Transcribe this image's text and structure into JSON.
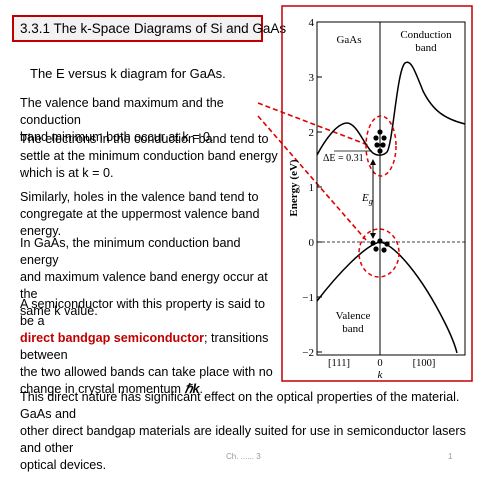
{
  "slide": {
    "title": "3.3.1  The k-Space Diagrams of Si and GaAs",
    "subtitle": "The E versus k diagram for GaAs.",
    "para1": [
      "The valence band maximum and the conduction",
      "band minimum both occur at k = 0."
    ],
    "para2": [
      "The electrons in the conduction band tend to",
      "settle at the minimum conduction band energy",
      "which is at k = 0."
    ],
    "para3": [
      "Similarly,  holes  in  the  valence  band  tend  to",
      "congregate at the uppermost valence band energy."
    ],
    "para4": [
      "In GaAs, the minimum conduction band energy",
      "and maximum valence band energy occur at the",
      "same k value."
    ],
    "para5": {
      "line1": " A semiconductor with this property is said to be a",
      "highlight": "direct  bandgap semiconductor",
      "line2_rest": "; transitions between",
      "line3": "the two allowed bands can take place with no",
      "line4": "change in crystal momentum ",
      "hk": "ℏk",
      "period": "."
    },
    "para6": [
      "This direct nature has significant effect on the optical properties of the material. GaAs and",
      "other direct bandgap materials are ideally suited for use in semiconductor lasers and other",
      "optical devices."
    ],
    "footer_chapter": "Ch. ...... 3",
    "footer_page": "1"
  },
  "diagram": {
    "ylabel": "Energy (eV)",
    "y_ticks": [
      "4",
      "3",
      "2",
      "1",
      "0",
      "−1",
      "−2"
    ],
    "label_gaas": "GaAs",
    "label_conduction_1": "Conduction",
    "label_conduction_2": "band",
    "label_valence_1": "Valence",
    "label_valence_2": "band",
    "label_delta": "ΔE = 0.31",
    "label_eg": "E",
    "label_eg_sub": "g",
    "x_ticks": [
      "[111]",
      "0",
      "[100]"
    ],
    "xlabel": "k",
    "colors": {
      "frame": "#c00000",
      "callout": "#e00000",
      "curve": "#000000"
    }
  }
}
